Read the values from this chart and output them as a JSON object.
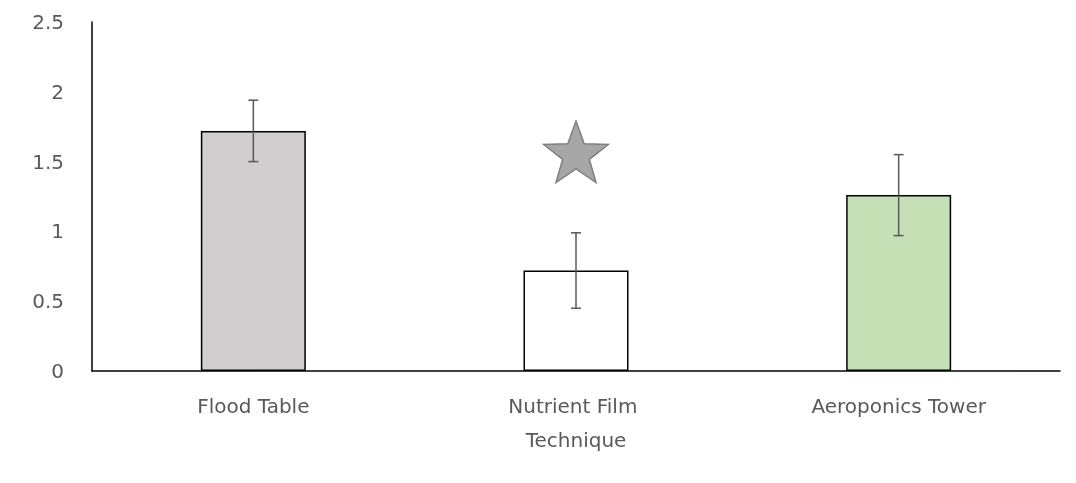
{
  "chart_data": {
    "type": "bar",
    "categories": [
      "Flood Table",
      "Nutrient Film Technique",
      "Aeroponics Tower"
    ],
    "values": [
      1.72,
      0.72,
      1.26
    ],
    "colors": [
      "#d0cece",
      "#ffffff",
      "#c5e0b4"
    ],
    "errors": [
      0.22,
      0.27,
      0.29
    ],
    "ylim": [
      0,
      2.5
    ],
    "yticks": [
      0,
      0.5,
      1,
      1.5,
      2,
      2.5
    ],
    "grid": false
  }
}
